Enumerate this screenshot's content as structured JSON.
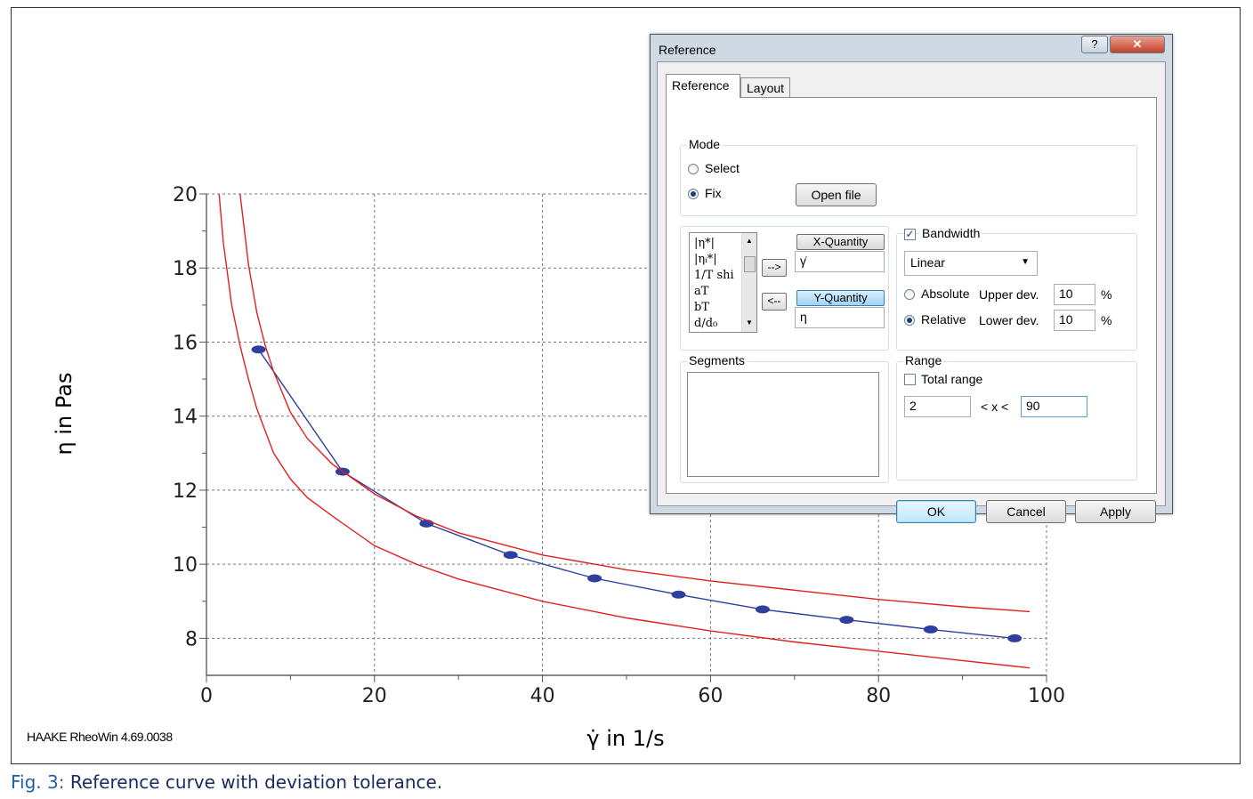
{
  "chart_data": {
    "type": "line",
    "xlabel": "γ̇ in 1/s",
    "ylabel": "η in Pas",
    "xlim": [
      0,
      100
    ],
    "ylim": [
      7,
      20
    ],
    "x_ticks": [
      "0",
      "20",
      "40",
      "60",
      "80",
      "100"
    ],
    "y_ticks": [
      "8",
      "10",
      "12",
      "14",
      "16",
      "18",
      "20"
    ],
    "grid": true,
    "series": [
      {
        "color": "#2f3f9f",
        "marker": "ellipse",
        "x": [
          6.2,
          16.2,
          26.2,
          36.2,
          46.2,
          56.2,
          66.2,
          76.2,
          86.2,
          96.2
        ],
        "y": [
          15.8,
          12.5,
          11.1,
          10.25,
          9.62,
          9.18,
          8.78,
          8.5,
          8.24,
          8.0
        ]
      },
      {
        "color": "#e02020",
        "x": [
          4,
          5,
          6,
          7,
          8,
          10,
          12,
          15,
          20,
          25,
          30,
          40,
          50,
          60,
          70,
          80,
          90,
          98
        ],
        "y": [
          20.0,
          18.1,
          16.8,
          15.9,
          15.2,
          14.1,
          13.4,
          12.7,
          11.9,
          11.3,
          10.85,
          10.25,
          9.85,
          9.55,
          9.3,
          9.05,
          8.85,
          8.72
        ]
      },
      {
        "color": "#e02020",
        "x": [
          1.5,
          2,
          3,
          4,
          5,
          6,
          8,
          10,
          12,
          15,
          20,
          25,
          30,
          40,
          50,
          60,
          70,
          80,
          90,
          98
        ],
        "y": [
          20.0,
          18.7,
          17.0,
          15.9,
          15.0,
          14.2,
          13.0,
          12.3,
          11.8,
          11.3,
          10.5,
          10.0,
          9.6,
          9.0,
          8.55,
          8.2,
          7.9,
          7.65,
          7.4,
          7.2
        ]
      }
    ]
  },
  "footer_text": "HAAKE RheoWin 4.69.0038",
  "caption": {
    "label": "Fig. 3:",
    "text": " Reference curve with deviation tolerance."
  },
  "dialog": {
    "title": "Reference",
    "help_label": "?",
    "close_label": "✕",
    "tabs": [
      "Reference",
      "Layout"
    ],
    "mode": {
      "label": "Mode",
      "options": [
        "Select",
        "Fix"
      ],
      "selected": "Fix",
      "open_file_label": "Open file"
    },
    "quantity_list": [
      "|η*|",
      "|ηᵢ*|",
      "1/T shi",
      "aT",
      "bT",
      "d/d₀"
    ],
    "add_arrow": "-->",
    "remove_arrow": "<--",
    "x_quantity": {
      "button": "X-Quantity",
      "value": "γ̇"
    },
    "y_quantity": {
      "button": "Y-Quantity",
      "value": "η"
    },
    "bandwidth": {
      "label": "Bandwidth",
      "checked": true,
      "scale": "Linear",
      "absolute_label": "Absolute",
      "relative_label": "Relative",
      "selected": "Relative",
      "upper_label": "Upper dev.",
      "upper_value": "10",
      "lower_label": "Lower dev.",
      "lower_value": "10",
      "unit": "%"
    },
    "segments": {
      "label": "Segments"
    },
    "range": {
      "label": "Range",
      "total_range_label": "Total range",
      "total_range_checked": false,
      "min": "2",
      "between": "< x <",
      "max": "90"
    },
    "buttons": {
      "ok": "OK",
      "cancel": "Cancel",
      "apply": "Apply"
    }
  }
}
